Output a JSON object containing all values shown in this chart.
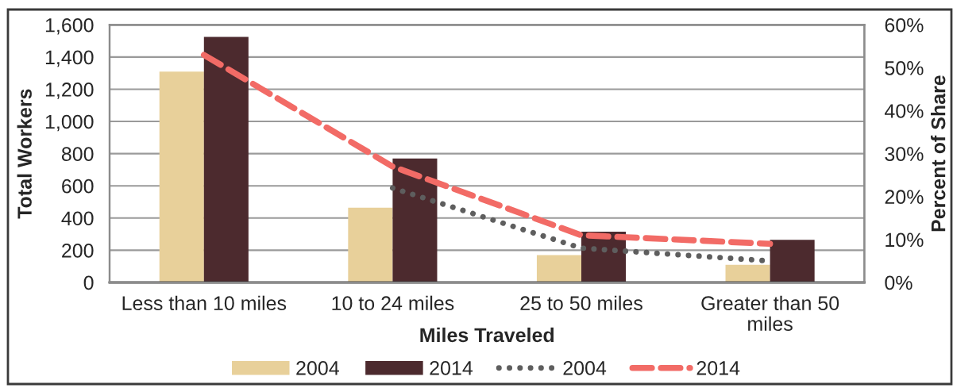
{
  "chart_data": {
    "type": "bar",
    "xlabel": "Miles Traveled",
    "ylabel": "Total Workers",
    "y2label": "Percent of Share",
    "categories": [
      "Less than 10 miles",
      "10 to 24 miles",
      "25 to 50 miles",
      "Greater than 50 miles"
    ],
    "series": [
      {
        "name": "2004",
        "color": "#e8d09a",
        "values": [
          1310,
          465,
          170,
          110
        ]
      },
      {
        "name": "2014",
        "color": "#4c2a2e",
        "values": [
          1525,
          770,
          315,
          265
        ]
      },
      {
        "name": "2004",
        "type": "line",
        "axis": "y2",
        "line_style": "dotted",
        "color": "#5e5e5e",
        "values": [
          null,
          22,
          8,
          5
        ]
      },
      {
        "name": "2014",
        "type": "line",
        "axis": "y2",
        "line_style": "dashed",
        "color": "#f26b66",
        "values": [
          53,
          27,
          11,
          9
        ]
      }
    ],
    "ylim": [
      0,
      1600
    ],
    "yticks": [
      0,
      200,
      400,
      600,
      800,
      {
        "value": 1000,
        "label": "1,000"
      },
      {
        "value": 1200,
        "label": "1,200"
      },
      {
        "value": 1400,
        "label": "1,400"
      },
      {
        "value": 1600,
        "label": "1,600"
      }
    ],
    "y2lim": [
      0,
      60
    ],
    "y2ticks": [
      {
        "value": 0,
        "label": "0%"
      },
      {
        "value": 10,
        "label": "10%"
      },
      {
        "value": 20,
        "label": "20%"
      },
      {
        "value": 30,
        "label": "30%"
      },
      {
        "value": 40,
        "label": "40%"
      },
      {
        "value": 50,
        "label": "50%"
      },
      {
        "value": 60,
        "label": "60%"
      }
    ],
    "grid": "y",
    "legend": "bottom"
  }
}
